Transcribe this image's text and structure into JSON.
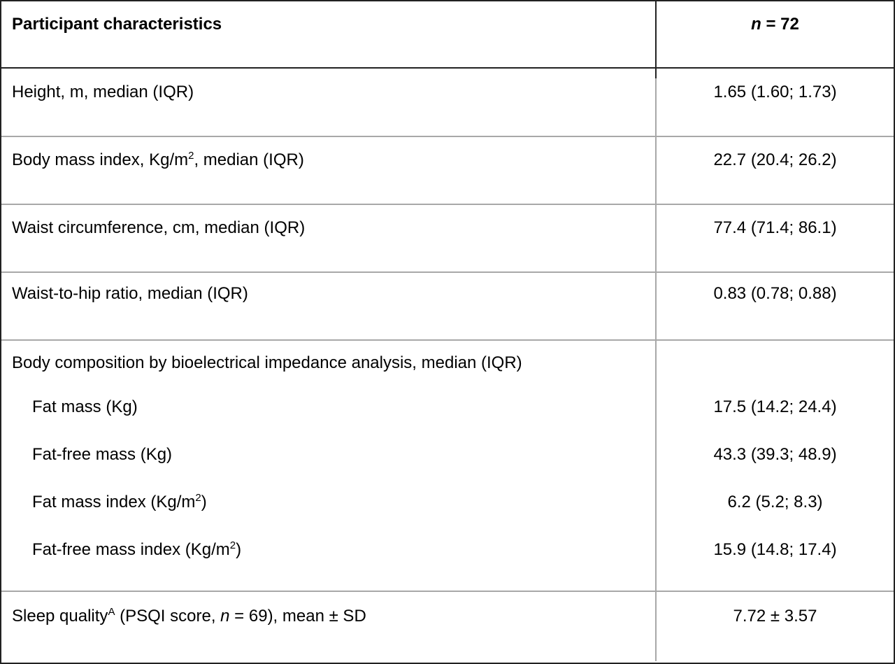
{
  "header": {
    "characteristic": "Participant characteristics",
    "sample": [
      "n",
      " = 72"
    ]
  },
  "rows": [
    {
      "label": [
        "Height, m, median (IQR)"
      ],
      "value": "1.65 (1.60; 1.73)"
    },
    {
      "label": [
        "Body mass index, Kg/m",
        "2",
        ", median (IQR)"
      ],
      "value": "22.7 (20.4; 26.2)"
    },
    {
      "label": [
        "Waist circumference, cm, median (IQR)"
      ],
      "value": "77.4 (71.4; 86.1)"
    },
    {
      "label": [
        "Waist-to-hip ratio, median (IQR)"
      ],
      "value": "0.83 (0.78; 0.88)"
    }
  ],
  "body_composition": {
    "label": "Body composition by bioelectrical impedance analysis, median (IQR)",
    "items": [
      {
        "label": [
          "Fat mass (Kg)"
        ],
        "value": "17.5 (14.2; 24.4)"
      },
      {
        "label": [
          "Fat-free mass (Kg)"
        ],
        "value": "43.3 (39.3; 48.9)"
      },
      {
        "label": [
          "Fat mass index (Kg/m",
          "2",
          ")"
        ],
        "value": "6.2 (5.2; 8.3)"
      },
      {
        "label": [
          "Fat-free mass index (Kg/m",
          "2",
          ")"
        ],
        "value": "15.9 (14.8; 17.4)"
      }
    ]
  },
  "sleep": {
    "label": [
      "Sleep quality",
      "A",
      " (PSQI score, ",
      "n",
      " = 69), mean ± SD"
    ],
    "value": "7.72 ± 3.57"
  }
}
